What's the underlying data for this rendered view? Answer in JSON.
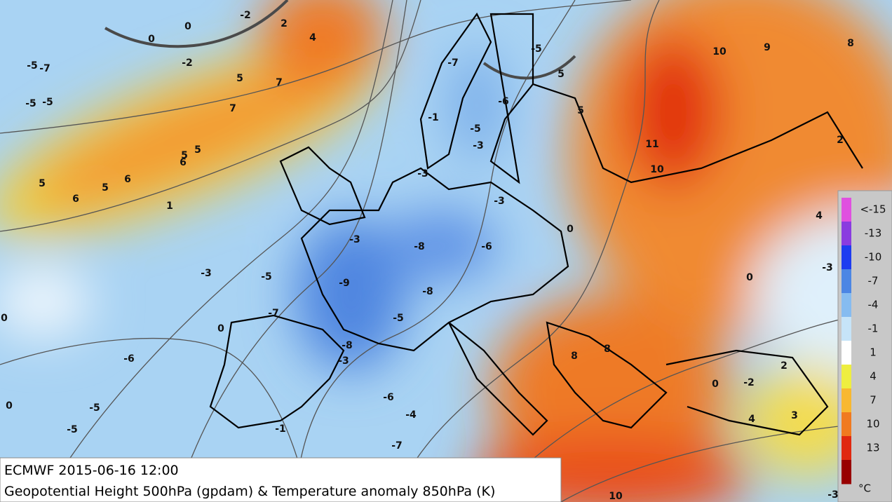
{
  "header": {
    "line1": "ECMWF 2015-06-16 12:00",
    "line2": "Geopotential Height 500hPa (gpdam) & Temperature anomaly 850hPa (K)"
  },
  "legend": {
    "labels": [
      "<-15",
      "-13",
      "-10",
      "-7",
      "-4",
      "-1",
      "1",
      "4",
      "7",
      "10",
      "13"
    ],
    "unit": "°C"
  },
  "map": {
    "labels": [
      "0",
      "0",
      "-2",
      "2",
      "4",
      "-5",
      "-7",
      "-2",
      "5",
      "7",
      "-5",
      "-5",
      "7",
      "5",
      "5",
      "6",
      "5",
      "5",
      "6",
      "6",
      "1",
      "-3",
      "-5",
      "-7",
      "0",
      "0",
      "-6",
      "-5",
      "0",
      "-5",
      "-1",
      "-7",
      "-4",
      "-6",
      "-3",
      "-8",
      "-5",
      "-8",
      "-9",
      "-3",
      "-8",
      "-6",
      "-3",
      "-3",
      "-3",
      "-5",
      "-1",
      "-6",
      "-7",
      "-5",
      "5",
      "5",
      "0",
      "10",
      "9",
      "8",
      "11",
      "10",
      "2",
      "4",
      "-3",
      "0",
      "8",
      "8",
      "0",
      "-2",
      "2",
      "4",
      "3",
      "10",
      "-3"
    ]
  }
}
